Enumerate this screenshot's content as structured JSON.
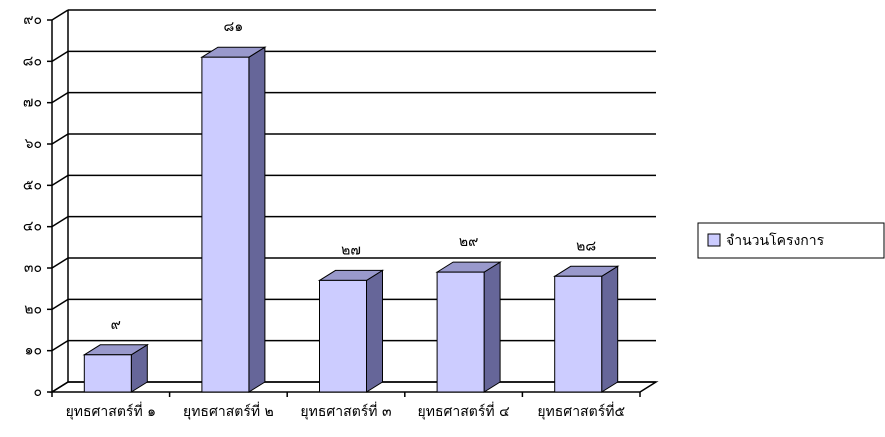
{
  "chart_data": {
    "type": "bar3d",
    "categories": [
      "ยุทธศาสตร์ที่ ๑",
      "ยุทธศาสตร์ที่ ๒",
      "ยุทธศาสตร์ที่ ๓",
      "ยุทธศาสตร์ที่ ๔",
      "ยุทธศาสตร์ที่๕"
    ],
    "series": [
      {
        "name": "จำนวนโครงการ",
        "color": "#ccccff",
        "values": [
          9,
          81,
          27,
          29,
          28
        ],
        "value_labels": [
          "๙",
          "๘๑",
          "๒๗",
          "๒๙",
          "๒๘"
        ]
      }
    ],
    "ylim": [
      0,
      90
    ],
    "yticks": [
      {
        "value": 0,
        "label": "๐"
      },
      {
        "value": 10,
        "label": "๑๐"
      },
      {
        "value": 20,
        "label": "๒๐"
      },
      {
        "value": 30,
        "label": "๓๐"
      },
      {
        "value": 40,
        "label": "๔๐"
      },
      {
        "value": 50,
        "label": "๕๐"
      },
      {
        "value": 60,
        "label": "๖๐"
      },
      {
        "value": 70,
        "label": "๗๐"
      },
      {
        "value": 80,
        "label": "๘๐"
      },
      {
        "value": 90,
        "label": "๙๐"
      }
    ],
    "grid": true,
    "legend": "right"
  }
}
